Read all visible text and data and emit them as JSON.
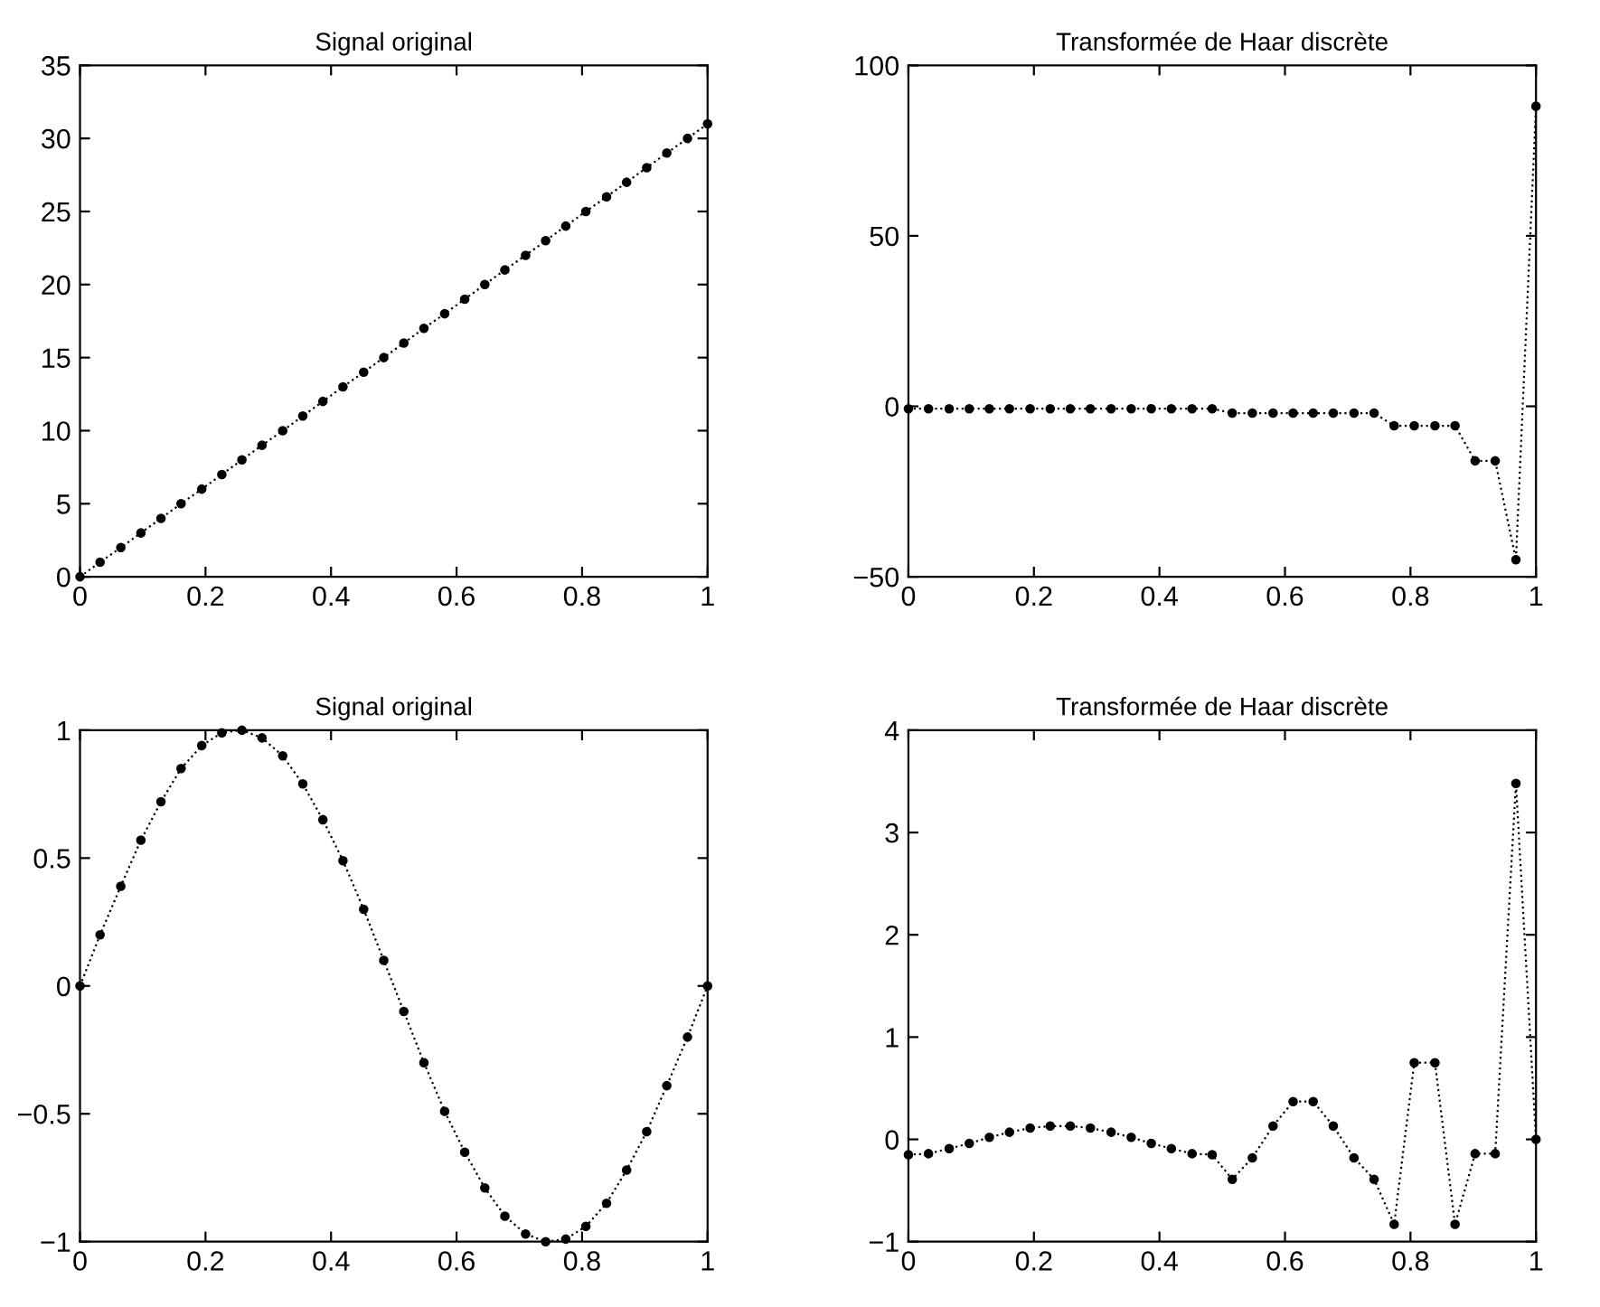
{
  "chart_data": [
    {
      "type": "line",
      "title": "Signal original",
      "marker": "circle",
      "line_style": "dotted",
      "grid": false,
      "legend": false,
      "x": [
        0,
        0.032,
        0.065,
        0.097,
        0.129,
        0.161,
        0.194,
        0.226,
        0.258,
        0.29,
        0.323,
        0.355,
        0.387,
        0.419,
        0.452,
        0.484,
        0.516,
        0.548,
        0.581,
        0.613,
        0.645,
        0.677,
        0.71,
        0.742,
        0.774,
        0.806,
        0.839,
        0.871,
        0.903,
        0.935,
        0.968,
        1
      ],
      "series": [
        {
          "color": "#000000",
          "values": [
            0,
            1,
            2,
            3,
            4,
            5,
            6,
            7,
            8,
            9,
            10,
            11,
            12,
            13,
            14,
            15,
            16,
            17,
            18,
            19,
            20,
            21,
            22,
            23,
            24,
            25,
            26,
            27,
            28,
            29,
            30,
            31
          ]
        }
      ],
      "xlim": [
        0,
        1
      ],
      "xticks": [
        0,
        0.2,
        0.4,
        0.6,
        0.8,
        1
      ],
      "ylim": [
        0,
        35
      ],
      "yticks": [
        0,
        5,
        10,
        15,
        20,
        25,
        30,
        35
      ]
    },
    {
      "type": "line",
      "title": "Transformée de Haar discrète",
      "marker": "circle",
      "line_style": "dotted",
      "grid": false,
      "legend": false,
      "x": [
        0,
        0.032,
        0.065,
        0.097,
        0.129,
        0.161,
        0.194,
        0.226,
        0.258,
        0.29,
        0.323,
        0.355,
        0.387,
        0.419,
        0.452,
        0.484,
        0.516,
        0.548,
        0.581,
        0.613,
        0.645,
        0.677,
        0.71,
        0.742,
        0.774,
        0.806,
        0.839,
        0.871,
        0.903,
        0.935,
        0.968,
        1
      ],
      "series": [
        {
          "color": "#000000",
          "values": [
            -0.7,
            -0.7,
            -0.7,
            -0.7,
            -0.7,
            -0.7,
            -0.7,
            -0.7,
            -0.7,
            -0.7,
            -0.7,
            -0.7,
            -0.7,
            -0.7,
            -0.7,
            -0.7,
            -2,
            -2,
            -2,
            -2,
            -2,
            -2,
            -2,
            -2,
            -5.7,
            -5.7,
            -5.7,
            -5.7,
            -16,
            -16,
            -45,
            88
          ]
        }
      ],
      "xlim": [
        0,
        1
      ],
      "xticks": [
        0,
        0.2,
        0.4,
        0.6,
        0.8,
        1
      ],
      "ylim": [
        -50,
        100
      ],
      "yticks": [
        {
          "value": -50,
          "label": "−50"
        },
        0,
        50,
        100
      ]
    },
    {
      "type": "line",
      "title": "Signal original",
      "marker": "circle",
      "line_style": "dotted",
      "grid": false,
      "legend": false,
      "x": [
        0,
        0.032,
        0.065,
        0.097,
        0.129,
        0.161,
        0.194,
        0.226,
        0.258,
        0.29,
        0.323,
        0.355,
        0.387,
        0.419,
        0.452,
        0.484,
        0.516,
        0.548,
        0.581,
        0.613,
        0.645,
        0.677,
        0.71,
        0.742,
        0.774,
        0.806,
        0.839,
        0.871,
        0.903,
        0.935,
        0.968,
        1
      ],
      "series": [
        {
          "color": "#000000",
          "values": [
            0,
            0.2,
            0.39,
            0.57,
            0.72,
            0.85,
            0.94,
            0.99,
            1.0,
            0.97,
            0.9,
            0.79,
            0.65,
            0.49,
            0.3,
            0.1,
            -0.1,
            -0.3,
            -0.49,
            -0.65,
            -0.79,
            -0.9,
            -0.97,
            -1.0,
            -0.99,
            -0.94,
            -0.85,
            -0.72,
            -0.57,
            -0.39,
            -0.2,
            0
          ]
        }
      ],
      "xlim": [
        0,
        1
      ],
      "xticks": [
        0,
        0.2,
        0.4,
        0.6,
        0.8,
        1
      ],
      "ylim": [
        -1,
        1
      ],
      "yticks": [
        {
          "value": -1,
          "label": "−1"
        },
        {
          "value": -0.5,
          "label": "−0.5"
        },
        0,
        0.5,
        1
      ]
    },
    {
      "type": "line",
      "title": "Transformée de Haar discrète",
      "marker": "circle",
      "line_style": "dotted",
      "grid": false,
      "legend": false,
      "x": [
        0,
        0.032,
        0.065,
        0.097,
        0.129,
        0.161,
        0.194,
        0.226,
        0.258,
        0.29,
        0.323,
        0.355,
        0.387,
        0.419,
        0.452,
        0.484,
        0.516,
        0.548,
        0.581,
        0.613,
        0.645,
        0.677,
        0.71,
        0.742,
        0.774,
        0.806,
        0.839,
        0.871,
        0.903,
        0.935,
        0.968,
        1
      ],
      "series": [
        {
          "color": "#000000",
          "values": [
            -0.15,
            -0.14,
            -0.09,
            -0.04,
            0.02,
            0.07,
            0.11,
            0.13,
            0.13,
            0.11,
            0.07,
            0.02,
            -0.04,
            -0.09,
            -0.14,
            -0.15,
            -0.39,
            -0.18,
            0.13,
            0.37,
            0.37,
            0.13,
            -0.18,
            -0.39,
            -0.83,
            0.75,
            0.75,
            -0.83,
            -0.14,
            -0.14,
            3.48,
            0
          ]
        }
      ],
      "xlim": [
        0,
        1
      ],
      "xticks": [
        0,
        0.2,
        0.4,
        0.6,
        0.8,
        1
      ],
      "ylim": [
        -1,
        4
      ],
      "yticks": [
        {
          "value": -1,
          "label": "−1"
        },
        0,
        1,
        2,
        3,
        4
      ]
    }
  ]
}
